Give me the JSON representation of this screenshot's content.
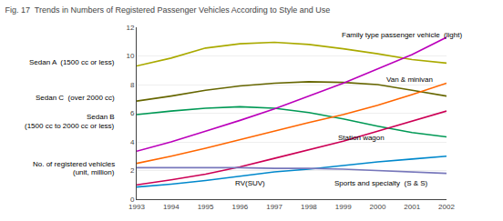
{
  "chart_data": {
    "type": "line",
    "title": "Fig. 17  Trends in Numbers of Registered Passenger Vehicles According to Style and Use",
    "x": [
      1993,
      1994,
      1995,
      1996,
      1997,
      1998,
      1999,
      2000,
      2001,
      2002
    ],
    "xlim": [
      1993,
      2002
    ],
    "xticks": [
      1993,
      1994,
      1995,
      1996,
      1997,
      1998,
      1999,
      2000,
      2001,
      2002
    ],
    "ylim": [
      0,
      12
    ],
    "yticks": [
      0,
      2,
      4,
      6,
      8,
      10,
      12
    ],
    "grid": true,
    "series": [
      {
        "color": "#aaaa00",
        "values": [
          9.3,
          9.85,
          10.55,
          10.85,
          10.95,
          10.8,
          10.5,
          10.15,
          9.75,
          9.5
        ]
      },
      {
        "color": "#666600",
        "values": [
          6.85,
          7.2,
          7.6,
          7.9,
          8.1,
          8.2,
          8.15,
          8.0,
          7.6,
          7.2
        ]
      },
      {
        "color": "#009955",
        "values": [
          5.9,
          6.15,
          6.35,
          6.45,
          6.35,
          6.05,
          5.6,
          5.1,
          4.65,
          4.35
        ]
      },
      {
        "color": "#bb00bb",
        "values": [
          3.35,
          4.0,
          4.75,
          5.5,
          6.3,
          7.2,
          8.1,
          9.1,
          10.1,
          11.3
        ]
      },
      {
        "color": "#ff6600",
        "values": [
          2.5,
          3.0,
          3.55,
          4.15,
          4.75,
          5.35,
          5.9,
          6.55,
          7.3,
          8.1
        ]
      },
      {
        "color": "#cc0055",
        "values": [
          1.0,
          1.35,
          1.75,
          2.25,
          2.85,
          3.45,
          4.05,
          4.75,
          5.45,
          6.15
        ]
      },
      {
        "color": "#0088cc",
        "values": [
          0.85,
          1.05,
          1.3,
          1.6,
          1.9,
          2.1,
          2.35,
          2.6,
          2.8,
          3.0
        ]
      },
      {
        "color": "#7777bb",
        "values": [
          2.2,
          2.2,
          2.2,
          2.2,
          2.15,
          2.15,
          2.1,
          2.0,
          1.9,
          1.8
        ]
      }
    ],
    "annotations": [
      {
        "text": "Sedan A  (1500 cc or less)",
        "y": 9.55
      },
      {
        "text": "Sedan C  (over 2000 cc)",
        "y": 7.1
      },
      {
        "text": "Sedan B",
        "y": 5.75
      },
      {
        "text": "(1500 cc to 2000 cc or less)",
        "y": 5.1
      },
      {
        "text": "No. of registered vehicles",
        "y": 2.45
      },
      {
        "text": "(unit, million)",
        "y": 1.85
      },
      {
        "text": "Family type passenger vehicle  (light)",
        "x": 1998.9,
        "y": 11.45
      },
      {
        "text": "Van & minivan",
        "x": 2000.2,
        "y": 8.35
      },
      {
        "text": "Station wagon",
        "x": 1998.8,
        "y": 4.3
      },
      {
        "text": "RV(SUV)",
        "x": 1995.8,
        "y": 1.1
      },
      {
        "text": "Sports and specialty  (S & S)",
        "x": 1998.7,
        "y": 1.1
      }
    ]
  }
}
